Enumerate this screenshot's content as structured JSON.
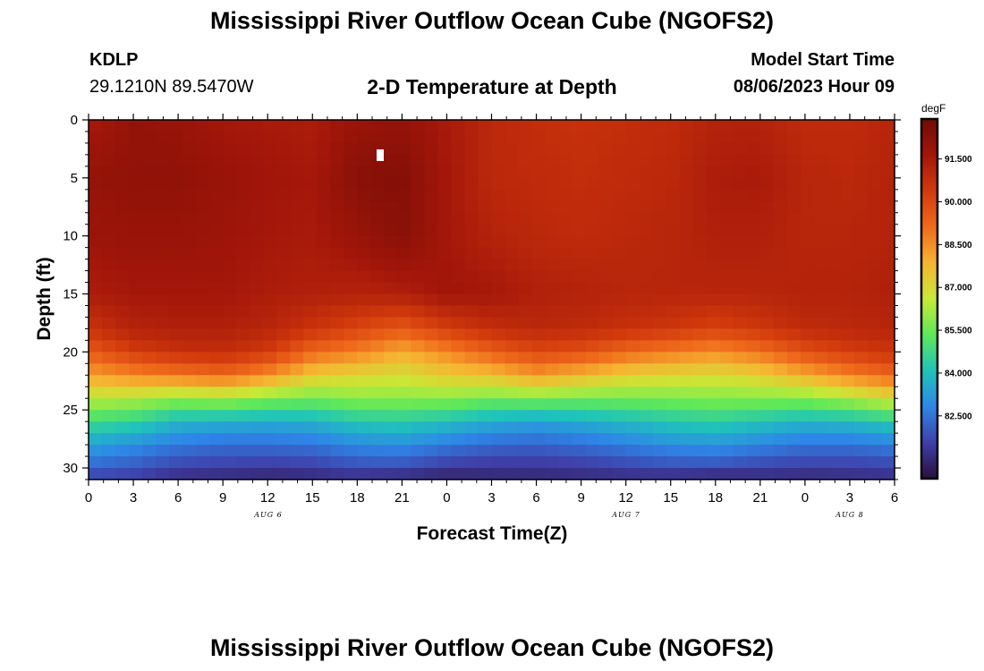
{
  "page": {
    "title": "Mississippi River Outflow Ocean Cube (NGOFS2)",
    "station": "KDLP",
    "location": "29.1210N  89.5470W",
    "plot_title": "2-D Temperature at Depth",
    "model_start_label": "Model Start Time",
    "model_start_value": "08/06/2023 Hour 09",
    "footer_title": "Mississippi River Outflow Ocean Cube (NGOFS2)"
  },
  "chart_data": {
    "type": "heatmap",
    "title": "2-D Temperature at Depth",
    "xlabel": "Forecast Time(Z)",
    "ylabel": "Depth (ft)",
    "x_ticks": [
      "0",
      "3",
      "6",
      "9",
      "12",
      "15",
      "18",
      "21",
      "0",
      "3",
      "6",
      "9",
      "12",
      "15",
      "18",
      "21",
      "0",
      "3",
      "6"
    ],
    "date_labels": [
      {
        "label": "AUG 6",
        "hour": 12
      },
      {
        "label": "AUG 7",
        "hour": 36
      },
      {
        "label": "AUG 8",
        "hour": 51
      }
    ],
    "xlim_hours": [
      0,
      54
    ],
    "y_ticks": [
      0,
      5,
      10,
      15,
      20,
      25,
      30
    ],
    "ylim": [
      0,
      31
    ],
    "colorbar": {
      "unit": "degF",
      "ticks": [
        "91.500",
        "90.000",
        "88.500",
        "87.000",
        "85.500",
        "84.000",
        "82.500"
      ],
      "range": [
        80.3,
        92.9
      ]
    },
    "colors": [
      "#2a0f3d",
      "#3f3fa8",
      "#2e86e8",
      "#1fc3bb",
      "#5ee85a",
      "#c7e936",
      "#f6b431",
      "#ef6a1b",
      "#d23a0c",
      "#a3160a",
      "#700c04"
    ],
    "profile_hours": [
      0,
      3,
      6,
      9,
      12,
      15,
      18,
      21,
      24,
      27,
      30,
      33,
      36,
      39,
      42,
      45,
      48,
      51,
      54
    ],
    "profile_depths": [
      0,
      5,
      10,
      15,
      18,
      20,
      22,
      24,
      26,
      28,
      30,
      31
    ],
    "profiles": [
      [
        91.5,
        92.0,
        91.8,
        91.4,
        90.6,
        89.5,
        88.2,
        86.5,
        84.8,
        83.4,
        82.2,
        81.5
      ],
      [
        92.0,
        92.1,
        91.9,
        91.6,
        91.2,
        90.3,
        88.6,
        86.4,
        84.5,
        83.0,
        82.0,
        81.4
      ],
      [
        91.9,
        92.1,
        91.9,
        91.6,
        91.3,
        90.7,
        88.9,
        86.0,
        83.8,
        82.6,
        81.6,
        81.0
      ],
      [
        91.6,
        91.9,
        91.8,
        91.6,
        91.3,
        90.8,
        89.2,
        86.2,
        83.7,
        82.4,
        81.5,
        80.9
      ],
      [
        91.5,
        91.7,
        91.6,
        91.4,
        91.1,
        90.4,
        88.5,
        85.8,
        83.6,
        82.4,
        81.4,
        80.8
      ],
      [
        91.4,
        91.6,
        91.5,
        91.3,
        90.6,
        89.2,
        87.4,
        85.6,
        83.7,
        82.5,
        81.5,
        80.9
      ],
      [
        91.9,
        92.3,
        91.9,
        91.2,
        90.1,
        88.7,
        87.1,
        85.9,
        84.2,
        82.9,
        81.8,
        81.0
      ],
      [
        92.0,
        92.4,
        92.3,
        91.3,
        89.6,
        88.0,
        86.9,
        85.9,
        84.3,
        83.0,
        81.8,
        80.8
      ],
      [
        91.5,
        91.6,
        91.6,
        91.7,
        90.3,
        88.6,
        87.4,
        85.9,
        84.0,
        82.6,
        81.4,
        80.7
      ],
      [
        91.0,
        91.0,
        91.2,
        91.6,
        90.8,
        89.4,
        87.6,
        85.6,
        83.6,
        82.3,
        81.3,
        80.9
      ],
      [
        90.8,
        90.9,
        91.0,
        91.3,
        91.0,
        90.0,
        88.3,
        85.7,
        83.4,
        82.2,
        81.3,
        80.9
      ],
      [
        90.7,
        90.8,
        90.9,
        91.2,
        90.9,
        89.8,
        87.8,
        85.6,
        83.6,
        82.4,
        81.4,
        81.0
      ],
      [
        90.8,
        90.9,
        91.0,
        91.1,
        90.7,
        89.2,
        87.3,
        85.6,
        83.9,
        82.7,
        81.6,
        81.0
      ],
      [
        90.9,
        91.0,
        91.1,
        91.1,
        90.5,
        88.8,
        87.1,
        85.7,
        84.2,
        83.0,
        81.8,
        80.9
      ],
      [
        91.2,
        91.4,
        91.3,
        91.1,
        90.2,
        88.5,
        87.0,
        85.8,
        84.4,
        83.1,
        81.8,
        80.7
      ],
      [
        91.2,
        91.5,
        91.3,
        91.1,
        90.5,
        89.0,
        87.3,
        85.8,
        84.1,
        82.8,
        81.6,
        80.9
      ],
      [
        90.9,
        91.1,
        91.1,
        91.2,
        90.9,
        89.8,
        88.0,
        85.8,
        83.8,
        82.5,
        81.5,
        80.9
      ],
      [
        90.9,
        91.0,
        91.1,
        91.2,
        91.0,
        90.3,
        88.7,
        86.3,
        83.9,
        82.5,
        81.5,
        81.0
      ],
      [
        91.1,
        91.2,
        91.2,
        91.3,
        91.1,
        90.6,
        89.3,
        87.0,
        84.3,
        82.7,
        81.6,
        81.1
      ]
    ]
  }
}
